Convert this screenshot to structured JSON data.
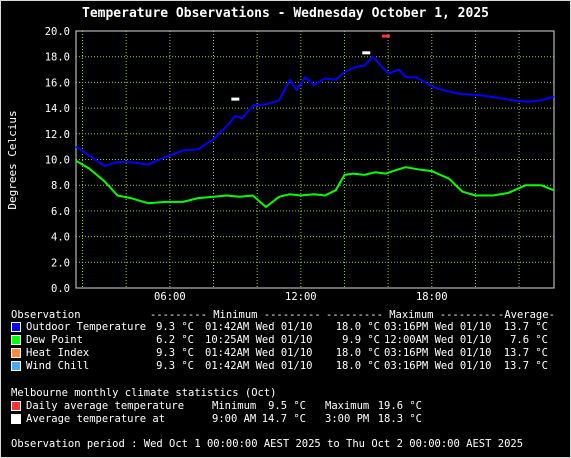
{
  "title": "Temperature Observations - Wednesday October 1, 2025",
  "y_axis_label": "Degrees Celcius",
  "chart_data": {
    "type": "line",
    "title": "Temperature Observations - Wednesday October 1, 2025",
    "ylabel": "Degrees Celcius",
    "xlabel": "",
    "ylim": [
      0,
      20
    ],
    "yticks": [
      "0.0",
      "2.0",
      "4.0",
      "6.0",
      "8.0",
      "10.0",
      "12.0",
      "14.0",
      "16.0",
      "18.0",
      "20.0"
    ],
    "xlim": [
      1.7,
      23.6
    ],
    "xtick_hours": [
      6,
      12,
      18
    ],
    "xtick_labels": [
      "06:00",
      "12:00",
      "18:00"
    ],
    "grid": true,
    "series": [
      {
        "name": "Outdoor Temperature",
        "color": "#0000ff",
        "x": [
          1.7,
          2.3,
          3.0,
          3.6,
          4.2,
          5.0,
          5.8,
          6.6,
          7.3,
          8.0,
          8.6,
          9.0,
          9.3,
          9.8,
          10.4,
          11.0,
          11.5,
          11.8,
          12.2,
          12.6,
          13.1,
          13.6,
          14.0,
          14.5,
          14.9,
          15.3,
          15.6,
          16.0,
          16.5,
          16.8,
          17.3,
          18.0,
          18.5,
          19.3,
          20.2,
          21.0,
          21.7,
          22.4,
          23.0,
          23.6
        ],
        "values": [
          11.0,
          10.3,
          9.5,
          9.8,
          9.8,
          9.6,
          10.2,
          10.7,
          10.8,
          11.6,
          12.6,
          13.4,
          13.2,
          14.2,
          14.3,
          14.6,
          16.2,
          15.4,
          16.4,
          15.8,
          16.3,
          16.2,
          16.8,
          17.2,
          17.3,
          18.0,
          17.4,
          16.7,
          17.0,
          16.4,
          16.4,
          15.7,
          15.4,
          15.1,
          15.0,
          14.8,
          14.6,
          14.5,
          14.6,
          14.9
        ]
      },
      {
        "name": "Dew Point",
        "color": "#00ff00",
        "x": [
          1.7,
          2.3,
          3.0,
          3.6,
          4.2,
          5.0,
          5.8,
          6.6,
          7.3,
          8.0,
          8.6,
          9.2,
          9.8,
          10.4,
          11.0,
          11.5,
          12.0,
          12.6,
          13.1,
          13.6,
          14.0,
          14.4,
          14.9,
          15.4,
          15.9,
          16.4,
          16.8,
          17.5,
          18.0,
          18.8,
          19.4,
          20.0,
          20.8,
          21.5,
          22.3,
          23.0,
          23.6
        ],
        "values": [
          9.9,
          9.3,
          8.3,
          7.2,
          7.0,
          6.6,
          6.7,
          6.7,
          7.0,
          7.1,
          7.2,
          7.1,
          7.2,
          6.3,
          7.1,
          7.3,
          7.2,
          7.3,
          7.2,
          7.6,
          8.8,
          8.9,
          8.8,
          9.0,
          8.9,
          9.2,
          9.4,
          9.2,
          9.1,
          8.5,
          7.5,
          7.2,
          7.2,
          7.4,
          8.0,
          8.0,
          7.6
        ]
      }
    ],
    "markers": [
      {
        "name": "Daily average temperature",
        "color": "#ff3333",
        "x": 15.9,
        "y": 19.6
      },
      {
        "name": "Average temperature at 9:00 AM",
        "color": "#ffffff",
        "x": 9.0,
        "y": 14.7
      },
      {
        "name": "Average temperature at 3:00 PM",
        "color": "#ffffff",
        "x": 15.0,
        "y": 18.3
      }
    ]
  },
  "legend": {
    "header": {
      "observation": "Observation",
      "minimum": "--------- Minimum ---------",
      "maximum": "--------- Maximum ---------",
      "average": "-Average-"
    },
    "rows": [
      {
        "swatch": "#0000ff",
        "name": "Outdoor Temperature",
        "min_val": "9.3 °C",
        "min_time": "01:42AM Wed 01/10",
        "max_val": "18.0 °C",
        "max_time": "03:16PM Wed 01/10",
        "avg": "13.7 °C"
      },
      {
        "swatch": "#00ff00",
        "name": "Dew Point",
        "min_val": "6.2 °C",
        "min_time": "10:25AM Wed 01/10",
        "max_val": "9.9 °C",
        "max_time": "12:00AM Wed 01/10",
        "avg": "7.6 °C"
      },
      {
        "swatch": "#ff8c3a",
        "name": "Heat Index",
        "min_val": "9.3 °C",
        "min_time": "01:42AM Wed 01/10",
        "max_val": "18.0 °C",
        "max_time": "03:16PM Wed 01/10",
        "avg": "13.7 °C"
      },
      {
        "swatch": "#4aa8ff",
        "name": "Wind Chill",
        "min_val": "9.3 °C",
        "min_time": "01:42AM Wed 01/10",
        "max_val": "18.0 °C",
        "max_time": "03:16PM Wed 01/10",
        "avg": "13.7 °C"
      }
    ]
  },
  "climate": {
    "heading": "Melbourne monthly climate statistics (Oct)",
    "rows": [
      {
        "swatch": "#ff3333",
        "name": "Daily average temperature",
        "c1": "Minimum",
        "v1": "9.5 °C",
        "c2": "Maximum",
        "v2": "19.6 °C"
      },
      {
        "swatch": "#ffffff",
        "name": "Average temperature at",
        "c1": "9:00 AM",
        "v1": "14.7 °C",
        "c2": "3:00 PM",
        "v2": "18.3 °C"
      }
    ]
  },
  "period": "Observation period : Wed Oct 1 00:00:00 AEST 2025 to Thu Oct 2 00:00:00 AEST 2025"
}
